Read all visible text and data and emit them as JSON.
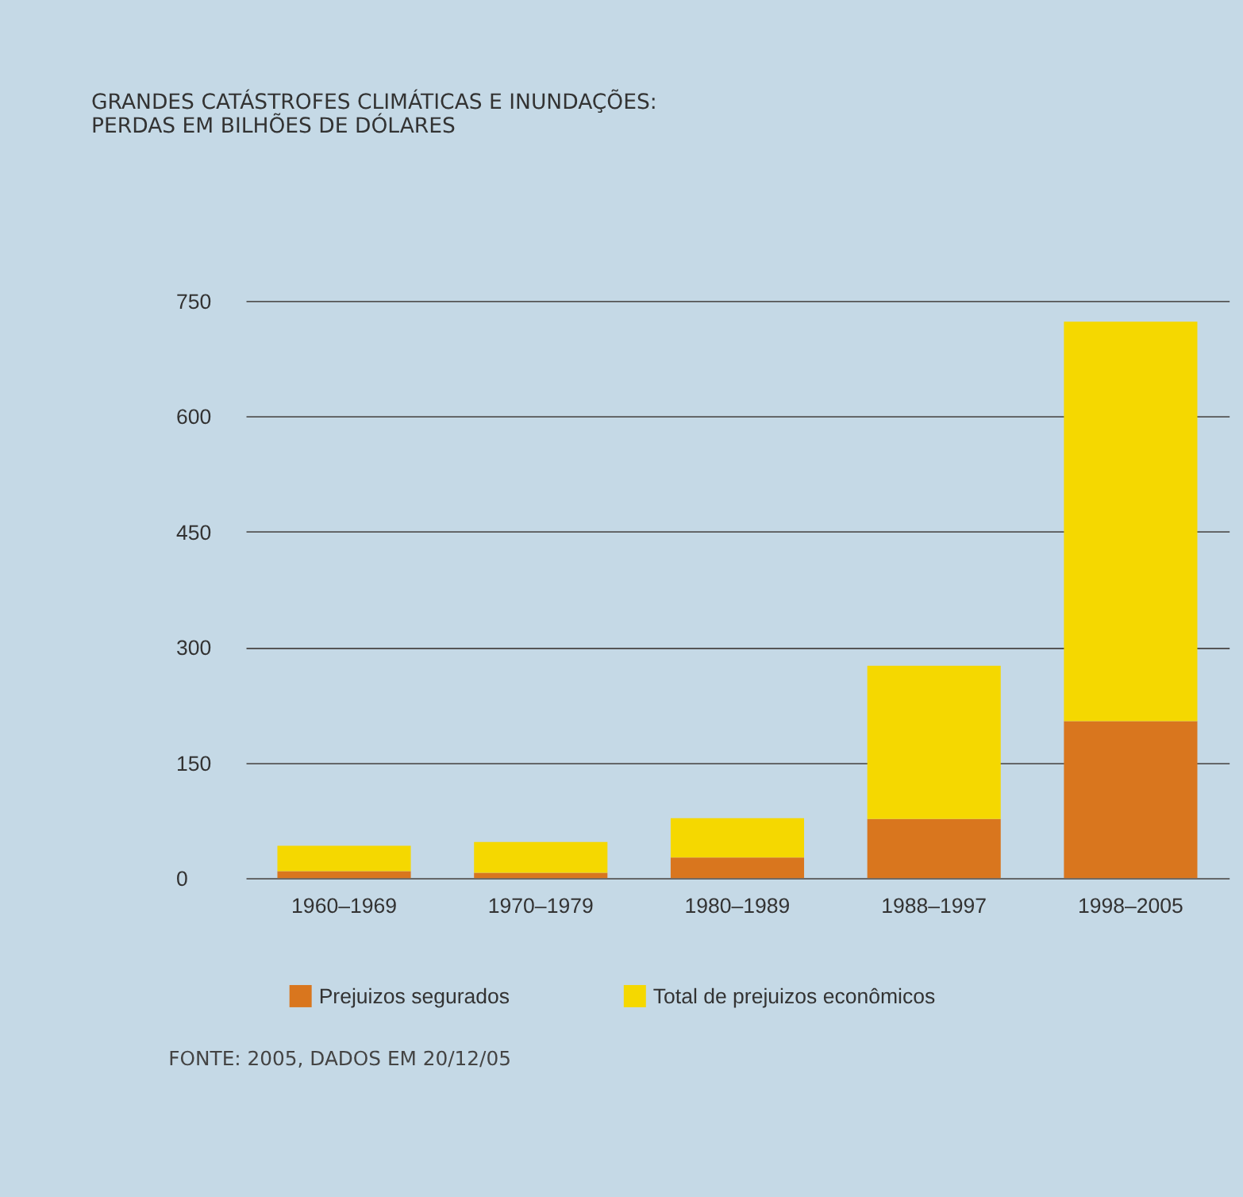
{
  "chart_data": {
    "type": "bar",
    "title": [
      "GRANDES CATÁSTROFES CLIMÁTICAS E INUNDAÇÕES:",
      "PERDAS EM BILHÕES DE DÓLARES"
    ],
    "categories": [
      "1960–1969",
      "1970–1979",
      "1980–1989",
      "1988–1997",
      "1998–2005"
    ],
    "series": [
      {
        "name": "Prejuizos segurados",
        "color": "#d9761e",
        "values": [
          9,
          7,
          27,
          77,
          204
        ]
      },
      {
        "name": "Total de prejuizos econômicos",
        "color": "#f5d800",
        "values": [
          33,
          40,
          51,
          199,
          519
        ]
      }
    ],
    "stacked": true,
    "ylim": [
      0,
      750
    ],
    "yticks": [
      0,
      150,
      300,
      450,
      600,
      750
    ],
    "grid": "y",
    "legend": "bottom",
    "annotations": [
      "FONTE: 2005, DADOS EM 20/12/05"
    ]
  }
}
